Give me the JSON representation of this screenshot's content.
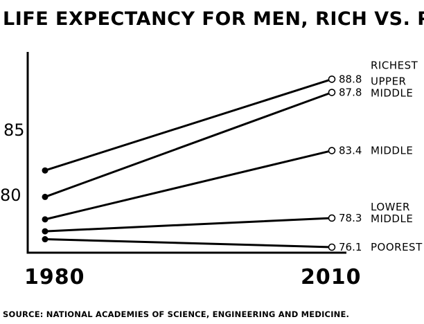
{
  "chart_data": {
    "type": "line",
    "title": "LIFE EXPECTANCY FOR MEN, RICH VS. POOR",
    "x": [
      "1980",
      "2010"
    ],
    "y_ticks": [
      "85",
      "80"
    ],
    "ylim": [
      74.5,
      90.5
    ],
    "grid": false,
    "legend": "none",
    "series": [
      {
        "name": "RICHEST",
        "label_lines": [
          "RICHEST"
        ],
        "values": [
          81.9,
          88.8
        ],
        "end_label": "88.8"
      },
      {
        "name": "UPPER MIDDLE",
        "label_lines": [
          "UPPER",
          "MIDDLE"
        ],
        "values": [
          79.9,
          87.8
        ],
        "end_label": "87.8"
      },
      {
        "name": "MIDDLE",
        "label_lines": [
          "MIDDLE"
        ],
        "values": [
          78.2,
          83.4
        ],
        "end_label": "83.4"
      },
      {
        "name": "LOWER MIDDLE",
        "label_lines": [
          "LOWER",
          "MIDDLE"
        ],
        "values": [
          77.3,
          78.3
        ],
        "end_label": "78.3"
      },
      {
        "name": "POOREST",
        "label_lines": [
          "POOREST"
        ],
        "values": [
          76.7,
          76.1
        ],
        "end_label": "76.1"
      }
    ],
    "source": "SOURCE: NATIONAL ACADEMIES OF SCIENCE, ENGINEERING AND MEDICINE.",
    "colors": {
      "line": "#000000",
      "background": "#ffffff"
    }
  }
}
